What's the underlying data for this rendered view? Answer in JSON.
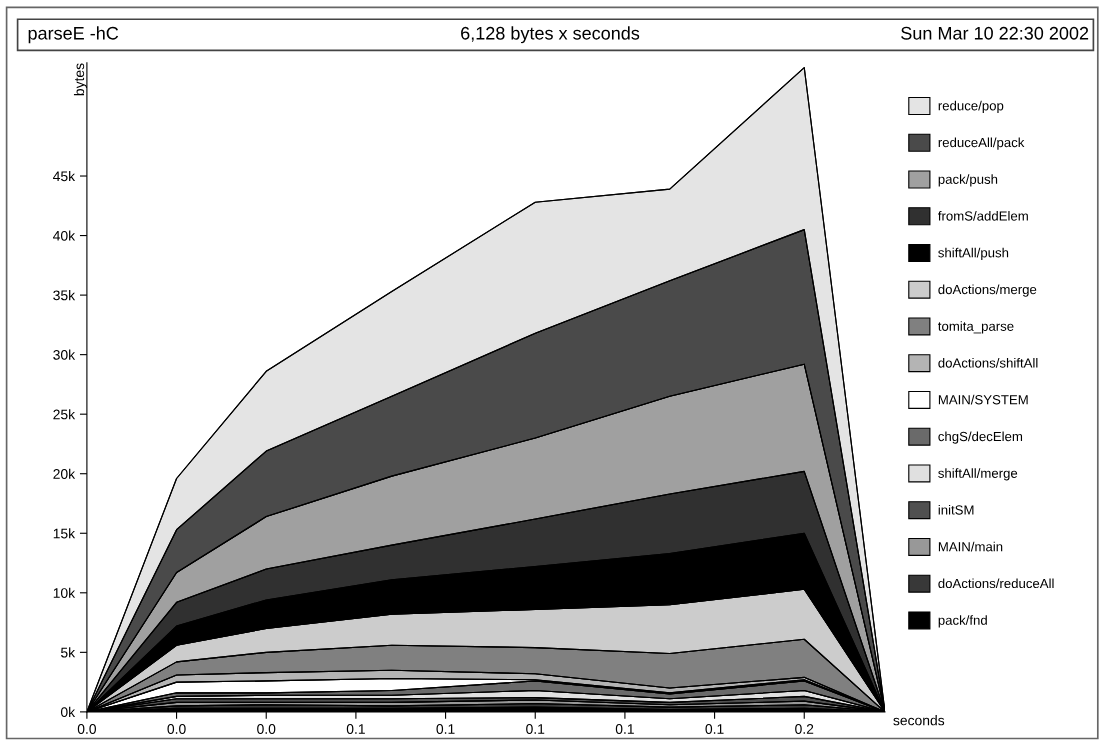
{
  "chart_data": {
    "type": "area",
    "stacked": true,
    "title": "parseE -hC",
    "subtitle": "6,128 bytes x seconds",
    "annotations": [
      "Sun Mar 10 22:30 2002"
    ],
    "xlabel": "seconds",
    "ylabel": "bytes",
    "x": [
      0,
      0.02,
      0.04,
      0.068,
      0.1,
      0.13,
      0.16,
      0.178
    ],
    "xlim": [
      0,
      0.178
    ],
    "xticks": [
      {
        "value": 0,
        "label": "0.0"
      },
      {
        "value": 0.02,
        "label": "0.0"
      },
      {
        "value": 0.04,
        "label": "0.0"
      },
      {
        "value": 0.06,
        "label": "0.1"
      },
      {
        "value": 0.08,
        "label": "0.1"
      },
      {
        "value": 0.1,
        "label": "0.1"
      },
      {
        "value": 0.12,
        "label": "0.1"
      },
      {
        "value": 0.14,
        "label": "0.1"
      },
      {
        "value": 0.16,
        "label": "0.2"
      }
    ],
    "ylim": [
      0,
      54.5
    ],
    "yticks": [
      {
        "value": 0,
        "label": "0k"
      },
      {
        "value": 5,
        "label": "5k"
      },
      {
        "value": 10,
        "label": "10k"
      },
      {
        "value": 15,
        "label": "15k"
      },
      {
        "value": 20,
        "label": "20k"
      },
      {
        "value": 25,
        "label": "25k"
      },
      {
        "value": 30,
        "label": "30k"
      },
      {
        "value": 35,
        "label": "35k"
      },
      {
        "value": 40,
        "label": "40k"
      },
      {
        "value": 45,
        "label": "45k"
      }
    ],
    "grid": false,
    "legend": "right",
    "series": [
      {
        "name": "pack/fnd",
        "color": "#000000",
        "values": [
          0,
          0.3,
          0.3,
          0.3,
          0.4,
          0.2,
          0.3,
          0
        ]
      },
      {
        "name": "doActions/reduceAll",
        "color": "#383838",
        "values": [
          0,
          0.2,
          0.3,
          0.2,
          0.3,
          0.2,
          0.3,
          0
        ]
      },
      {
        "name": "MAIN/main",
        "color": "#989898",
        "values": [
          0,
          0.3,
          0.2,
          0.3,
          0.3,
          0.2,
          0.3,
          0
        ]
      },
      {
        "name": "initSM",
        "color": "#505050",
        "values": [
          0,
          0.3,
          0.3,
          0.3,
          0.2,
          0.2,
          0.4,
          0
        ]
      },
      {
        "name": "shiftAll/merge",
        "color": "#e0e0e0",
        "values": [
          0,
          0.2,
          0.3,
          0.3,
          0.6,
          0.3,
          0.5,
          0
        ]
      },
      {
        "name": "chgS/decElem",
        "color": "#6a6a6a",
        "values": [
          0,
          0.3,
          0.2,
          0.4,
          0.8,
          0.4,
          0.8,
          0
        ]
      },
      {
        "name": "MAIN/SYSTEM",
        "color": "#ffffff",
        "values": [
          0,
          0.9,
          1.0,
          1.0,
          0.1,
          0.1,
          0.1,
          0
        ]
      },
      {
        "name": "doActions/shiftAll",
        "color": "#b4b4b4",
        "values": [
          0,
          0.6,
          0.7,
          0.7,
          0.5,
          0.4,
          0.2,
          0
        ]
      },
      {
        "name": "tomita_parse",
        "color": "#808080",
        "values": [
          0,
          1.1,
          1.7,
          2.1,
          2.2,
          2.9,
          3.2,
          0
        ]
      },
      {
        "name": "doActions/merge",
        "color": "#cccccc",
        "values": [
          0,
          1.4,
          2.0,
          2.6,
          3.2,
          4.1,
          4.2,
          0
        ]
      },
      {
        "name": "shiftAll/push",
        "color": "#000000",
        "values": [
          0,
          1.6,
          2.4,
          2.9,
          3.6,
          4.3,
          4.7,
          0
        ]
      },
      {
        "name": "fromS/addElem",
        "color": "#303030",
        "values": [
          0,
          2.0,
          2.6,
          2.9,
          4.0,
          5.0,
          5.2,
          0
        ]
      },
      {
        "name": "pack/push",
        "color": "#a0a0a0",
        "values": [
          0,
          2.5,
          4.4,
          5.8,
          6.8,
          8.2,
          9.0,
          0
        ]
      },
      {
        "name": "reduceAll/pack",
        "color": "#4a4a4a",
        "values": [
          0,
          3.6,
          5.5,
          6.7,
          8.8,
          9.7,
          11.3,
          0
        ]
      },
      {
        "name": "reduce/pop",
        "color": "#e4e4e4",
        "values": [
          0,
          4.3,
          6.7,
          8.8,
          11.0,
          7.7,
          13.6,
          0
        ]
      }
    ]
  }
}
